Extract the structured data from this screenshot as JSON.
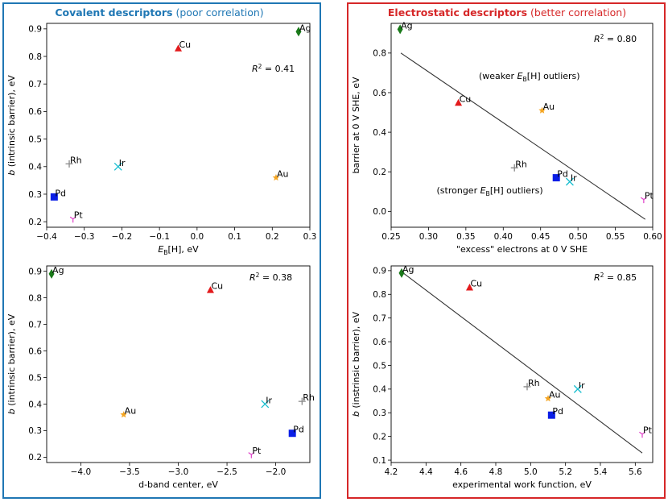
{
  "colors": {
    "covalent": "#1f77b4",
    "electrostatic": "#d62728"
  },
  "headers": {
    "left": {
      "bold": "Covalent descriptors",
      "normal": "(poor correlation)"
    },
    "right": {
      "bold": "Electrostatic descriptors",
      "normal": "(better correlation)"
    }
  },
  "legend_markers": {
    "Ag": {
      "color": "#1a7a1a",
      "shape": "diamond"
    },
    "Cu": {
      "color": "#e31a1c",
      "shape": "triangle"
    },
    "Au": {
      "color": "#f5a623",
      "shape": "star"
    },
    "Pd": {
      "color": "#0a1ee6",
      "shape": "square"
    },
    "Ir": {
      "color": "#17becf",
      "shape": "x"
    },
    "Rh": {
      "color": "#888888",
      "shape": "plus"
    },
    "Pt": {
      "color": "#e040c8",
      "shape": "tri_down"
    }
  },
  "chart_data": [
    {
      "id": "tl",
      "type": "scatter",
      "xlabel": "E_B[H], eV",
      "ylabel": "b (intrinsic barrier), eV",
      "xlim": [
        -0.4,
        0.3
      ],
      "ylim": [
        0.18,
        0.92
      ],
      "xticks": [
        -0.4,
        -0.3,
        -0.2,
        -0.1,
        0.0,
        0.1,
        0.2,
        0.3
      ],
      "xtick_labels": [
        "−0.4",
        "−0.3",
        "−0.2",
        "−0.1",
        "0.0",
        "0.1",
        "0.2",
        "0.3"
      ],
      "yticks": [
        0.2,
        0.3,
        0.4,
        0.5,
        0.6,
        0.7,
        0.8,
        0.9
      ],
      "ytick_labels": [
        "0.2",
        "0.3",
        "0.4",
        "0.5",
        "0.6",
        "0.7",
        "0.8",
        "0.9"
      ],
      "r2": "R² = 0.41",
      "annotations": [],
      "fit": null,
      "points": [
        {
          "label": "Ag",
          "x": 0.27,
          "y": 0.89
        },
        {
          "label": "Cu",
          "x": -0.05,
          "y": 0.83
        },
        {
          "label": "Rh",
          "x": -0.34,
          "y": 0.41
        },
        {
          "label": "Ir",
          "x": -0.21,
          "y": 0.4
        },
        {
          "label": "Au",
          "x": 0.21,
          "y": 0.36
        },
        {
          "label": "Pd",
          "x": -0.38,
          "y": 0.29
        },
        {
          "label": "Pt",
          "x": -0.33,
          "y": 0.21
        }
      ]
    },
    {
      "id": "tr",
      "type": "scatter",
      "xlabel": "\"excess\" electrons at 0 V SHE",
      "ylabel": "barrier at 0 V SHE, eV",
      "xlim": [
        0.25,
        0.6
      ],
      "ylim": [
        -0.08,
        0.95
      ],
      "xticks": [
        0.25,
        0.3,
        0.35,
        0.4,
        0.45,
        0.5,
        0.55,
        0.6
      ],
      "xtick_labels": [
        "0.25",
        "0.30",
        "0.35",
        "0.40",
        "0.45",
        "0.50",
        "0.55",
        "0.60"
      ],
      "yticks": [
        0.0,
        0.2,
        0.4,
        0.6,
        0.8
      ],
      "ytick_labels": [
        "0.0",
        "0.2",
        "0.4",
        "0.6",
        "0.8"
      ],
      "r2": "R² = 0.80",
      "annotations": [
        {
          "text": "(weaker E_B[H] outliers)",
          "x": 0.435,
          "y": 0.67
        },
        {
          "text": "(stronger E_B[H] outliers)",
          "x": 0.382,
          "y": 0.09
        }
      ],
      "fit": {
        "x0": 0.263,
        "y0": 0.8,
        "x1": 0.59,
        "y1": -0.04
      },
      "points": [
        {
          "label": "Ag",
          "x": 0.262,
          "y": 0.92
        },
        {
          "label": "Cu",
          "x": 0.34,
          "y": 0.55
        },
        {
          "label": "Au",
          "x": 0.452,
          "y": 0.51
        },
        {
          "label": "Rh",
          "x": 0.415,
          "y": 0.22
        },
        {
          "label": "Pd",
          "x": 0.471,
          "y": 0.17
        },
        {
          "label": "Ir",
          "x": 0.489,
          "y": 0.15
        },
        {
          "label": "Pt",
          "x": 0.588,
          "y": 0.06
        }
      ]
    },
    {
      "id": "bl",
      "type": "scatter",
      "xlabel": "d-band center, eV",
      "ylabel": "b (intrinsic barrier), eV",
      "xlim": [
        -4.35,
        -1.65
      ],
      "ylim": [
        0.18,
        0.92
      ],
      "xticks": [
        -4.0,
        -3.5,
        -3.0,
        -2.5,
        -2.0
      ],
      "xtick_labels": [
        "−4.0",
        "−3.5",
        "−3.0",
        "−2.5",
        "−2.0"
      ],
      "yticks": [
        0.2,
        0.3,
        0.4,
        0.5,
        0.6,
        0.7,
        0.8,
        0.9
      ],
      "ytick_labels": [
        "0.2",
        "0.3",
        "0.4",
        "0.5",
        "0.6",
        "0.7",
        "0.8",
        "0.9"
      ],
      "r2": "R² = 0.38",
      "annotations": [],
      "fit": null,
      "points": [
        {
          "label": "Ag",
          "x": -4.3,
          "y": 0.89
        },
        {
          "label": "Cu",
          "x": -2.67,
          "y": 0.83
        },
        {
          "label": "Rh",
          "x": -1.73,
          "y": 0.41
        },
        {
          "label": "Ir",
          "x": -2.11,
          "y": 0.4
        },
        {
          "label": "Au",
          "x": -3.56,
          "y": 0.36
        },
        {
          "label": "Pd",
          "x": -1.83,
          "y": 0.29
        },
        {
          "label": "Pt",
          "x": -2.25,
          "y": 0.21
        }
      ]
    },
    {
      "id": "br",
      "type": "scatter",
      "xlabel": "experimental work function, eV",
      "ylabel": "b (instrinsic barrier), eV",
      "xlim": [
        4.2,
        5.7
      ],
      "ylim": [
        0.09,
        0.92
      ],
      "xticks": [
        4.2,
        4.4,
        4.6,
        4.8,
        5.0,
        5.2,
        5.4,
        5.6
      ],
      "xtick_labels": [
        "4.2",
        "4.4",
        "4.6",
        "4.8",
        "5.0",
        "5.2",
        "5.4",
        "5.6"
      ],
      "yticks": [
        0.1,
        0.2,
        0.3,
        0.4,
        0.5,
        0.6,
        0.7,
        0.8,
        0.9
      ],
      "ytick_labels": [
        "0.1",
        "0.2",
        "0.3",
        "0.4",
        "0.5",
        "0.6",
        "0.7",
        "0.8",
        "0.9"
      ],
      "r2": "R² = 0.85",
      "annotations": [],
      "fit": {
        "x0": 4.26,
        "y0": 0.895,
        "x1": 5.64,
        "y1": 0.13
      },
      "points": [
        {
          "label": "Ag",
          "x": 4.26,
          "y": 0.89
        },
        {
          "label": "Cu",
          "x": 4.65,
          "y": 0.83
        },
        {
          "label": "Rh",
          "x": 4.98,
          "y": 0.41
        },
        {
          "label": "Au",
          "x": 5.1,
          "y": 0.36
        },
        {
          "label": "Ir",
          "x": 5.27,
          "y": 0.4
        },
        {
          "label": "Pd",
          "x": 5.12,
          "y": 0.29
        },
        {
          "label": "Pt",
          "x": 5.64,
          "y": 0.21
        }
      ]
    }
  ]
}
